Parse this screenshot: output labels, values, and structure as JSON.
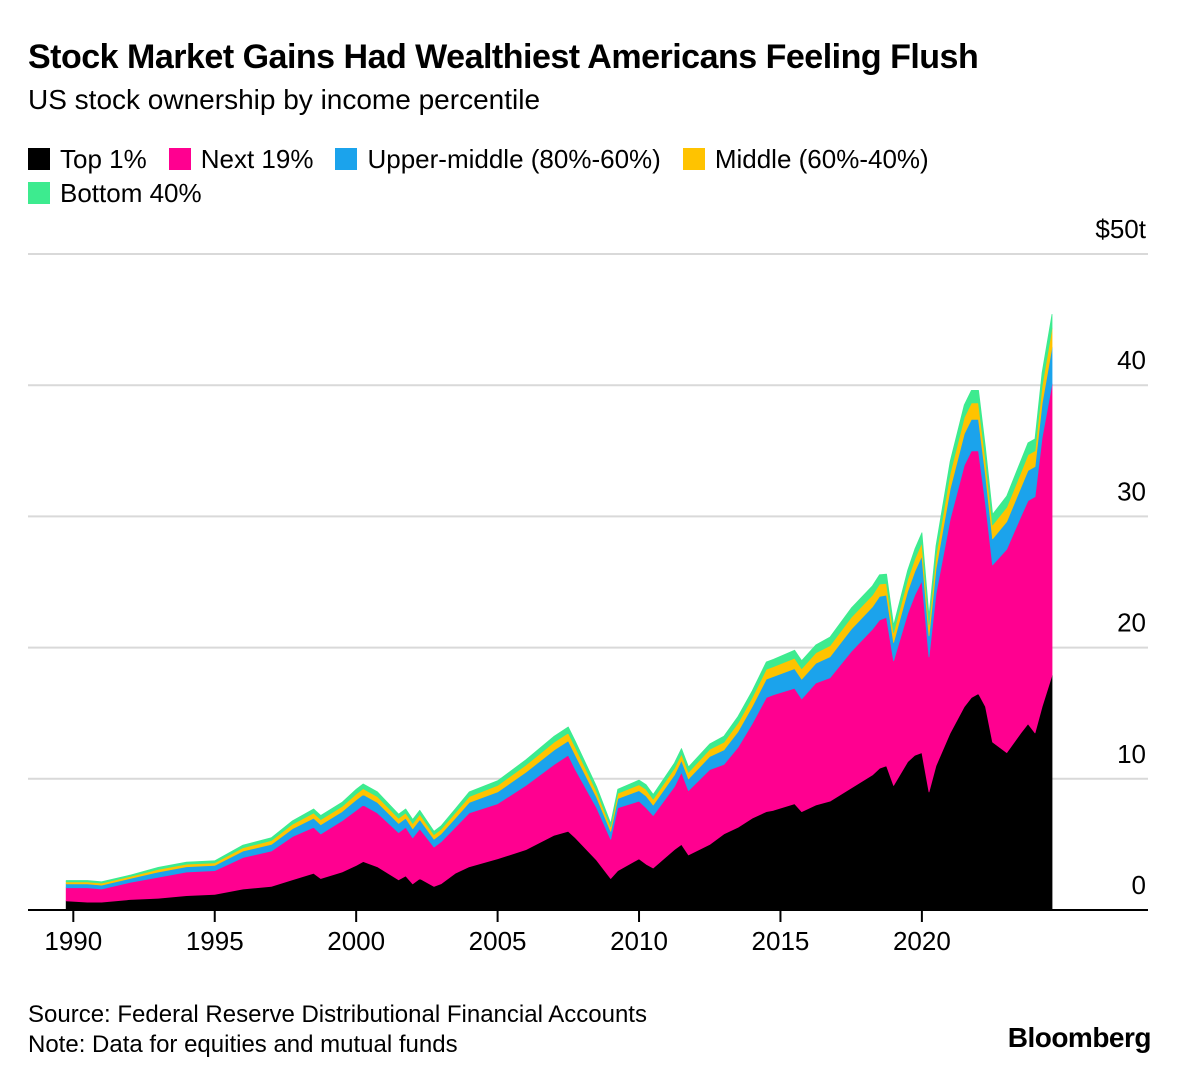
{
  "title": "Stock Market Gains Had Wealthiest Americans Feeling Flush",
  "subtitle": "US stock ownership by income percentile",
  "source": "Source: Federal Reserve Distributional Financial Accounts",
  "note": "Note: Data for equities and mutual funds",
  "brand": "Bloomberg",
  "chart_data": {
    "type": "area",
    "stacked": true,
    "title": "Stock Market Gains Had Wealthiest Americans Feeling Flush",
    "subtitle": "US stock ownership by income percentile",
    "y_unit_label": "$50t",
    "ylim": [
      0,
      50
    ],
    "y_ticks": [
      0,
      10,
      20,
      30,
      40,
      50
    ],
    "y_tick_labels": [
      "0",
      "10",
      "20",
      "30",
      "40",
      "$50t"
    ],
    "x_tick_labels": [
      "1990",
      "1995",
      "2000",
      "2005",
      "2010",
      "2015",
      "2020"
    ],
    "x_ticks": [
      1990,
      1995,
      2000,
      2005,
      2010,
      2015,
      2020
    ],
    "xlim": [
      1989.6,
      2024.6
    ],
    "grid": "horizontal",
    "legend_position": "top-left",
    "x": [
      1989.75,
      1990.5,
      1991.0,
      1992.0,
      1993.0,
      1994.0,
      1995.0,
      1996.0,
      1997.0,
      1997.75,
      1998.5,
      1998.75,
      1999.5,
      2000.0,
      2000.25,
      2000.75,
      2001.5,
      2001.75,
      2002.0,
      2002.25,
      2002.75,
      2003.0,
      2003.5,
      2004.0,
      2005.0,
      2006.0,
      2007.0,
      2007.5,
      2007.75,
      2008.5,
      2009.0,
      2009.25,
      2010.0,
      2010.25,
      2010.5,
      2011.25,
      2011.5,
      2011.75,
      2012.5,
      2013.0,
      2013.5,
      2014.0,
      2014.5,
      2014.75,
      2015.5,
      2015.75,
      2016.25,
      2016.75,
      2017.5,
      2018.25,
      2018.5,
      2018.75,
      2019.0,
      2019.5,
      2019.75,
      2020.0,
      2020.25,
      2020.5,
      2021.0,
      2021.5,
      2021.75,
      2022.0,
      2022.25,
      2022.5,
      2023.0,
      2023.5,
      2023.75,
      2024.0,
      2024.25,
      2024.6
    ],
    "series": [
      {
        "name": "Top 1%",
        "color": "#000000",
        "values": [
          0.7,
          0.6,
          0.6,
          0.8,
          0.9,
          1.1,
          1.2,
          1.6,
          1.8,
          2.3,
          2.8,
          2.4,
          2.9,
          3.4,
          3.7,
          3.3,
          2.3,
          2.6,
          2.0,
          2.4,
          1.8,
          2.0,
          2.8,
          3.3,
          3.9,
          4.6,
          5.7,
          6.0,
          5.5,
          3.8,
          2.4,
          3.0,
          3.9,
          3.5,
          3.2,
          4.6,
          5.0,
          4.2,
          5.0,
          5.8,
          6.3,
          7.0,
          7.5,
          7.6,
          8.1,
          7.5,
          8.0,
          8.3,
          9.3,
          10.3,
          10.8,
          11.0,
          9.5,
          11.3,
          11.8,
          12.0,
          9.0,
          11.0,
          13.5,
          15.5,
          16.2,
          16.5,
          15.5,
          12.8,
          12.0,
          13.5,
          14.2,
          13.5,
          15.5,
          17.9
        ]
      },
      {
        "name": "Next 19%",
        "color": "#FF0090",
        "values": [
          1.0,
          1.1,
          1.0,
          1.3,
          1.6,
          1.8,
          1.8,
          2.4,
          2.7,
          3.3,
          3.5,
          3.4,
          3.9,
          4.2,
          4.3,
          4.1,
          3.6,
          3.7,
          3.5,
          3.8,
          3.0,
          3.2,
          3.5,
          4.1,
          4.2,
          4.9,
          5.4,
          5.8,
          5.2,
          4.0,
          3.0,
          4.8,
          4.4,
          4.3,
          4.0,
          4.8,
          5.5,
          4.9,
          5.7,
          5.3,
          6.1,
          7.2,
          8.7,
          8.8,
          8.8,
          8.6,
          9.3,
          9.4,
          10.4,
          11.1,
          11.3,
          11.3,
          9.5,
          11.3,
          12.2,
          13.1,
          10.3,
          13.1,
          16.3,
          18.4,
          18.8,
          18.5,
          15.5,
          13.5,
          15.5,
          16.5,
          17.0,
          18.0,
          20.5,
          22.2
        ]
      },
      {
        "name": "Upper-middle (80%-60%)",
        "color": "#1BA3EC",
        "values": [
          0.3,
          0.3,
          0.3,
          0.3,
          0.4,
          0.4,
          0.4,
          0.5,
          0.5,
          0.6,
          0.7,
          0.7,
          0.7,
          0.8,
          0.8,
          0.8,
          0.7,
          0.7,
          0.7,
          0.7,
          0.6,
          0.6,
          0.7,
          0.8,
          0.9,
          1.0,
          1.1,
          1.1,
          1.1,
          0.8,
          0.6,
          0.7,
          0.8,
          0.9,
          0.8,
          0.9,
          0.9,
          0.9,
          1.0,
          1.1,
          1.2,
          1.3,
          1.4,
          1.4,
          1.5,
          1.5,
          1.5,
          1.6,
          1.7,
          1.7,
          1.8,
          1.7,
          1.4,
          1.7,
          1.8,
          1.9,
          1.6,
          1.9,
          2.3,
          2.4,
          2.4,
          2.4,
          2.2,
          2.0,
          2.1,
          2.2,
          2.3,
          2.3,
          2.6,
          2.8
        ]
      },
      {
        "name": "Middle (60%-40%)",
        "color": "#FFC300",
        "values": [
          0.15,
          0.15,
          0.15,
          0.15,
          0.2,
          0.2,
          0.2,
          0.25,
          0.3,
          0.35,
          0.4,
          0.4,
          0.4,
          0.45,
          0.45,
          0.45,
          0.4,
          0.4,
          0.4,
          0.4,
          0.35,
          0.35,
          0.4,
          0.45,
          0.5,
          0.55,
          0.6,
          0.6,
          0.6,
          0.45,
          0.35,
          0.4,
          0.45,
          0.5,
          0.45,
          0.5,
          0.5,
          0.5,
          0.55,
          0.6,
          0.65,
          0.7,
          0.75,
          0.75,
          0.8,
          0.8,
          0.8,
          0.85,
          0.9,
          0.9,
          0.95,
          0.9,
          0.75,
          0.9,
          0.95,
          1.0,
          0.85,
          1.0,
          1.2,
          1.25,
          1.25,
          1.25,
          1.15,
          1.05,
          1.1,
          1.15,
          1.2,
          1.2,
          1.35,
          1.45
        ]
      },
      {
        "name": "Bottom 40%",
        "color": "#3DEB8F",
        "values": [
          0.1,
          0.1,
          0.1,
          0.1,
          0.15,
          0.15,
          0.15,
          0.2,
          0.2,
          0.25,
          0.3,
          0.3,
          0.3,
          0.35,
          0.35,
          0.35,
          0.3,
          0.3,
          0.3,
          0.3,
          0.25,
          0.25,
          0.3,
          0.35,
          0.35,
          0.4,
          0.45,
          0.45,
          0.45,
          0.35,
          0.25,
          0.3,
          0.35,
          0.35,
          0.35,
          0.4,
          0.4,
          0.4,
          0.4,
          0.45,
          0.5,
          0.5,
          0.55,
          0.55,
          0.6,
          0.6,
          0.6,
          0.65,
          0.7,
          0.7,
          0.7,
          0.7,
          0.55,
          0.7,
          0.75,
          0.75,
          0.65,
          0.75,
          0.9,
          0.95,
          0.95,
          0.95,
          0.85,
          0.8,
          0.85,
          0.9,
          0.9,
          0.9,
          1.0,
          1.05
        ]
      }
    ]
  }
}
